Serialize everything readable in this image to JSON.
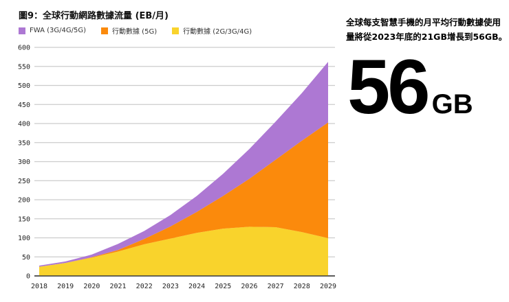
{
  "title": "圖9：全球行動網路數據流量 (EB/月)",
  "side_text": "全球每支智慧手機的月平均行動數據使用量將從2023年底的21GB增長到56GB。",
  "highlight": {
    "value": "56",
    "unit": "GB"
  },
  "chart_data": {
    "type": "area",
    "stacked": true,
    "title": "圖9：全球行動網路數據流量 (EB/月)",
    "x": [
      "2018",
      "2019",
      "2020",
      "2021",
      "2022",
      "2023",
      "2024",
      "2025",
      "2026",
      "2027",
      "2028",
      "2029"
    ],
    "ylim": [
      0,
      600
    ],
    "yticks": [
      "0",
      "50",
      "100",
      "150",
      "200",
      "250",
      "300",
      "350",
      "400",
      "450",
      "500",
      "550",
      "600"
    ],
    "grid": true,
    "legend_position": "top-left",
    "series": [
      {
        "name": "行動數據 (2G/3G/4G)",
        "color": "#f9d32c",
        "values": [
          24,
          34,
          48,
          64,
          83,
          98,
          113,
          124,
          129,
          128,
          115,
          99
        ]
      },
      {
        "name": "行動數據 (5G)",
        "color": "#fb8a0c",
        "values": [
          0,
          0,
          1,
          4,
          14,
          32,
          55,
          86,
          126,
          177,
          240,
          304
        ]
      },
      {
        "name": "FWA (3G/4G/5G)",
        "color": "#ad78d3",
        "values": [
          3,
          4,
          7,
          16,
          21,
          30,
          42,
          58,
          78,
          100,
          125,
          159
        ]
      }
    ],
    "legend_order": [
      2,
      1,
      0
    ]
  }
}
